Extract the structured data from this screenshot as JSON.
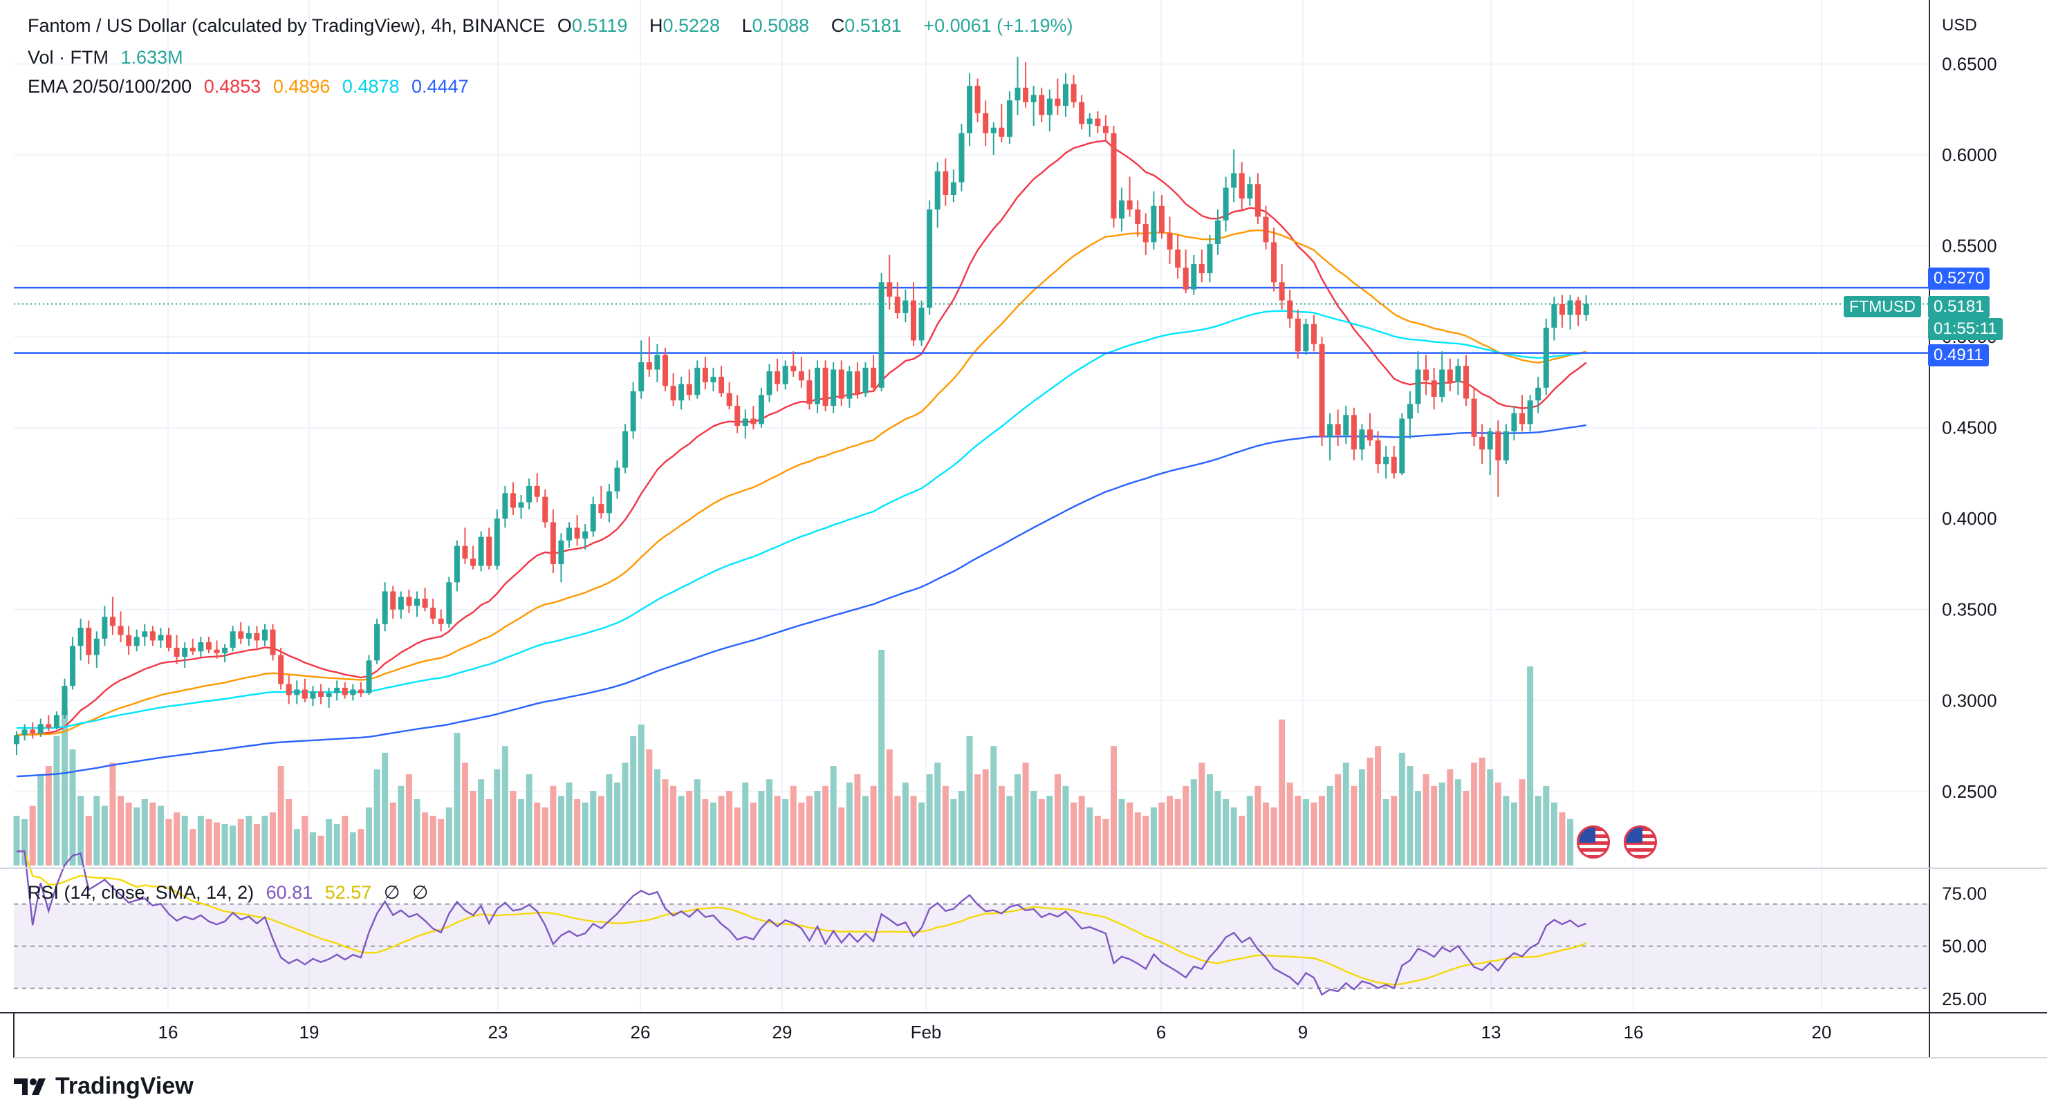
{
  "header": {
    "symbol_title": "Fantom / US Dollar (calculated by TradingView), 4h, BINANCE",
    "open_label": "O",
    "open_value": "0.5119",
    "high_label": "H",
    "high_value": "0.5228",
    "low_label": "L",
    "low_value": "0.5088",
    "close_label": "C",
    "close_value": "0.5181",
    "change_value": "+0.0061 (+1.19%)",
    "vol_label": "Vol · FTM",
    "vol_value": "1.633M",
    "ema_label": "EMA 20/50/100/200",
    "ema20_value": "0.4853",
    "ema50_value": "0.4896",
    "ema100_value": "0.4878",
    "ema200_value": "0.4447"
  },
  "rsi_header": {
    "label": "RSI (14, close, SMA, 14, 2)",
    "rsi_value": "60.81",
    "sma_value": "52.57",
    "extra1": "∅",
    "extra2": "∅"
  },
  "price_axis": {
    "currency": "USD",
    "ticks": [
      "0.6500",
      "0.6000",
      "0.5500",
      "0.5000",
      "0.4500",
      "0.4000",
      "0.3500",
      "0.3000",
      "0.2500"
    ]
  },
  "price_labels": {
    "resistance": "0.5270",
    "current_symbol": "FTMUSD",
    "current_price": "0.5181",
    "countdown": "01:55:11",
    "support": "0.4911"
  },
  "rsi_axis": {
    "ticks": [
      "75.00",
      "50.00",
      "25.00"
    ]
  },
  "time_axis": {
    "ticks": [
      "16",
      "19",
      "23",
      "26",
      "29",
      "Feb",
      "6",
      "9",
      "13",
      "16",
      "20"
    ]
  },
  "brand": {
    "name": "TradingView"
  },
  "colors": {
    "up": "#26a69a",
    "down": "#ef5350",
    "ema20": "#f23645",
    "ema50": "#ff9800",
    "ema100": "#00e5ff",
    "ema200": "#2962ff",
    "hline": "#2962ff",
    "rsi": "#7e57c2",
    "rsi_sma": "#f5d90a"
  },
  "chart_data": {
    "type": "candlestick",
    "title": "Fantom / US Dollar (calculated by TradingView), 4h, BINANCE",
    "ylabel": "USD",
    "ylim": [
      0.21,
      0.67
    ],
    "horizontal_lines": [
      0.527,
      0.4911
    ],
    "x_start_date": "2023-01-13",
    "candles": [
      [
        0.276,
        0.283,
        0.27,
        0.281
      ],
      [
        0.281,
        0.287,
        0.278,
        0.284
      ],
      [
        0.284,
        0.288,
        0.279,
        0.282
      ],
      [
        0.282,
        0.29,
        0.28,
        0.287
      ],
      [
        0.287,
        0.292,
        0.283,
        0.285
      ],
      [
        0.285,
        0.294,
        0.284,
        0.292
      ],
      [
        0.292,
        0.312,
        0.29,
        0.308
      ],
      [
        0.308,
        0.335,
        0.306,
        0.33
      ],
      [
        0.33,
        0.345,
        0.322,
        0.34
      ],
      [
        0.34,
        0.344,
        0.32,
        0.325
      ],
      [
        0.325,
        0.338,
        0.318,
        0.334
      ],
      [
        0.334,
        0.352,
        0.33,
        0.346
      ],
      [
        0.346,
        0.357,
        0.336,
        0.341
      ],
      [
        0.341,
        0.349,
        0.332,
        0.336
      ],
      [
        0.336,
        0.341,
        0.325,
        0.33
      ],
      [
        0.33,
        0.339,
        0.327,
        0.335
      ],
      [
        0.335,
        0.342,
        0.33,
        0.338
      ],
      [
        0.338,
        0.341,
        0.33,
        0.333
      ],
      [
        0.333,
        0.34,
        0.329,
        0.336
      ],
      [
        0.336,
        0.34,
        0.327,
        0.329
      ],
      [
        0.329,
        0.336,
        0.32,
        0.324
      ],
      [
        0.324,
        0.332,
        0.318,
        0.329
      ],
      [
        0.329,
        0.334,
        0.325,
        0.327
      ],
      [
        0.327,
        0.335,
        0.324,
        0.332
      ],
      [
        0.332,
        0.335,
        0.326,
        0.328
      ],
      [
        0.328,
        0.333,
        0.323,
        0.326
      ],
      [
        0.326,
        0.331,
        0.321,
        0.329
      ],
      [
        0.329,
        0.341,
        0.327,
        0.338
      ],
      [
        0.338,
        0.343,
        0.331,
        0.334
      ],
      [
        0.334,
        0.341,
        0.33,
        0.337
      ],
      [
        0.337,
        0.341,
        0.329,
        0.333
      ],
      [
        0.333,
        0.342,
        0.33,
        0.339
      ],
      [
        0.339,
        0.342,
        0.322,
        0.325
      ],
      [
        0.325,
        0.329,
        0.306,
        0.309
      ],
      [
        0.309,
        0.314,
        0.298,
        0.303
      ],
      [
        0.303,
        0.311,
        0.298,
        0.306
      ],
      [
        0.306,
        0.312,
        0.299,
        0.301
      ],
      [
        0.301,
        0.308,
        0.297,
        0.305
      ],
      [
        0.305,
        0.309,
        0.298,
        0.302
      ],
      [
        0.302,
        0.307,
        0.296,
        0.304
      ],
      [
        0.304,
        0.311,
        0.3,
        0.307
      ],
      [
        0.307,
        0.31,
        0.301,
        0.303
      ],
      [
        0.303,
        0.309,
        0.3,
        0.306
      ],
      [
        0.306,
        0.31,
        0.302,
        0.304
      ],
      [
        0.304,
        0.325,
        0.303,
        0.322
      ],
      [
        0.322,
        0.345,
        0.32,
        0.342
      ],
      [
        0.342,
        0.365,
        0.338,
        0.36
      ],
      [
        0.36,
        0.363,
        0.345,
        0.35
      ],
      [
        0.35,
        0.36,
        0.345,
        0.357
      ],
      [
        0.357,
        0.361,
        0.348,
        0.352
      ],
      [
        0.352,
        0.36,
        0.346,
        0.356
      ],
      [
        0.356,
        0.362,
        0.349,
        0.351
      ],
      [
        0.351,
        0.356,
        0.342,
        0.345
      ],
      [
        0.345,
        0.35,
        0.338,
        0.342
      ],
      [
        0.342,
        0.368,
        0.34,
        0.365
      ],
      [
        0.365,
        0.388,
        0.36,
        0.385
      ],
      [
        0.385,
        0.395,
        0.375,
        0.378
      ],
      [
        0.378,
        0.385,
        0.372,
        0.374
      ],
      [
        0.374,
        0.393,
        0.371,
        0.39
      ],
      [
        0.39,
        0.395,
        0.372,
        0.374
      ],
      [
        0.374,
        0.405,
        0.372,
        0.4
      ],
      [
        0.4,
        0.418,
        0.395,
        0.414
      ],
      [
        0.414,
        0.42,
        0.402,
        0.406
      ],
      [
        0.406,
        0.413,
        0.4,
        0.409
      ],
      [
        0.409,
        0.422,
        0.405,
        0.418
      ],
      [
        0.418,
        0.425,
        0.409,
        0.412
      ],
      [
        0.412,
        0.416,
        0.395,
        0.398
      ],
      [
        0.398,
        0.405,
        0.37,
        0.375
      ],
      [
        0.375,
        0.392,
        0.365,
        0.388
      ],
      [
        0.388,
        0.398,
        0.384,
        0.395
      ],
      [
        0.395,
        0.402,
        0.385,
        0.389
      ],
      [
        0.389,
        0.397,
        0.383,
        0.393
      ],
      [
        0.393,
        0.412,
        0.39,
        0.408
      ],
      [
        0.408,
        0.418,
        0.4,
        0.403
      ],
      [
        0.403,
        0.419,
        0.398,
        0.415
      ],
      [
        0.415,
        0.432,
        0.411,
        0.428
      ],
      [
        0.428,
        0.452,
        0.425,
        0.448
      ],
      [
        0.448,
        0.475,
        0.444,
        0.47
      ],
      [
        0.47,
        0.498,
        0.466,
        0.486
      ],
      [
        0.486,
        0.5,
        0.478,
        0.482
      ],
      [
        0.482,
        0.496,
        0.475,
        0.49
      ],
      [
        0.49,
        0.494,
        0.47,
        0.473
      ],
      [
        0.473,
        0.48,
        0.462,
        0.465
      ],
      [
        0.465,
        0.478,
        0.46,
        0.474
      ],
      [
        0.474,
        0.482,
        0.465,
        0.468
      ],
      [
        0.468,
        0.487,
        0.466,
        0.483
      ],
      [
        0.483,
        0.489,
        0.471,
        0.475
      ],
      [
        0.475,
        0.483,
        0.47,
        0.478
      ],
      [
        0.478,
        0.484,
        0.467,
        0.469
      ],
      [
        0.469,
        0.475,
        0.46,
        0.462
      ],
      [
        0.462,
        0.468,
        0.447,
        0.451
      ],
      [
        0.451,
        0.46,
        0.444,
        0.455
      ],
      [
        0.455,
        0.462,
        0.449,
        0.452
      ],
      [
        0.452,
        0.472,
        0.45,
        0.468
      ],
      [
        0.468,
        0.485,
        0.464,
        0.481
      ],
      [
        0.481,
        0.488,
        0.47,
        0.474
      ],
      [
        0.474,
        0.487,
        0.471,
        0.484
      ],
      [
        0.484,
        0.492,
        0.478,
        0.481
      ],
      [
        0.481,
        0.489,
        0.472,
        0.476
      ],
      [
        0.476,
        0.482,
        0.46,
        0.463
      ],
      [
        0.463,
        0.487,
        0.458,
        0.483
      ],
      [
        0.483,
        0.487,
        0.459,
        0.462
      ],
      [
        0.462,
        0.486,
        0.458,
        0.482
      ],
      [
        0.482,
        0.487,
        0.462,
        0.466
      ],
      [
        0.466,
        0.484,
        0.461,
        0.481
      ],
      [
        0.481,
        0.486,
        0.466,
        0.469
      ],
      [
        0.469,
        0.486,
        0.467,
        0.483
      ],
      [
        0.483,
        0.49,
        0.47,
        0.472
      ],
      [
        0.472,
        0.535,
        0.47,
        0.53
      ],
      [
        0.53,
        0.545,
        0.515,
        0.522
      ],
      [
        0.522,
        0.53,
        0.51,
        0.513
      ],
      [
        0.513,
        0.526,
        0.508,
        0.52
      ],
      [
        0.52,
        0.53,
        0.495,
        0.498
      ],
      [
        0.498,
        0.52,
        0.495,
        0.516
      ],
      [
        0.516,
        0.575,
        0.512,
        0.57
      ],
      [
        0.57,
        0.596,
        0.56,
        0.591
      ],
      [
        0.591,
        0.598,
        0.572,
        0.578
      ],
      [
        0.578,
        0.592,
        0.574,
        0.585
      ],
      [
        0.585,
        0.617,
        0.58,
        0.612
      ],
      [
        0.612,
        0.645,
        0.605,
        0.638
      ],
      [
        0.638,
        0.642,
        0.618,
        0.623
      ],
      [
        0.623,
        0.63,
        0.605,
        0.612
      ],
      [
        0.612,
        0.618,
        0.6,
        0.615
      ],
      [
        0.615,
        0.628,
        0.607,
        0.61
      ],
      [
        0.61,
        0.635,
        0.606,
        0.63
      ],
      [
        0.63,
        0.654,
        0.622,
        0.637
      ],
      [
        0.637,
        0.651,
        0.626,
        0.629
      ],
      [
        0.629,
        0.638,
        0.616,
        0.633
      ],
      [
        0.633,
        0.637,
        0.618,
        0.622
      ],
      [
        0.622,
        0.636,
        0.613,
        0.631
      ],
      [
        0.631,
        0.642,
        0.622,
        0.627
      ],
      [
        0.627,
        0.645,
        0.621,
        0.639
      ],
      [
        0.639,
        0.644,
        0.626,
        0.629
      ],
      [
        0.629,
        0.633,
        0.614,
        0.617
      ],
      [
        0.617,
        0.623,
        0.61,
        0.62
      ],
      [
        0.62,
        0.624,
        0.612,
        0.616
      ],
      [
        0.616,
        0.622,
        0.608,
        0.612
      ],
      [
        0.612,
        0.616,
        0.56,
        0.565
      ],
      [
        0.565,
        0.582,
        0.558,
        0.575
      ],
      [
        0.575,
        0.588,
        0.566,
        0.57
      ],
      [
        0.57,
        0.575,
        0.555,
        0.562
      ],
      [
        0.562,
        0.568,
        0.545,
        0.552
      ],
      [
        0.552,
        0.58,
        0.548,
        0.572
      ],
      [
        0.572,
        0.578,
        0.554,
        0.557
      ],
      [
        0.557,
        0.566,
        0.54,
        0.548
      ],
      [
        0.548,
        0.556,
        0.532,
        0.538
      ],
      [
        0.538,
        0.548,
        0.524,
        0.526
      ],
      [
        0.526,
        0.545,
        0.523,
        0.54
      ],
      [
        0.54,
        0.548,
        0.53,
        0.535
      ],
      [
        0.535,
        0.556,
        0.53,
        0.551
      ],
      [
        0.551,
        0.57,
        0.545,
        0.564
      ],
      [
        0.564,
        0.588,
        0.558,
        0.582
      ],
      [
        0.582,
        0.603,
        0.574,
        0.59
      ],
      [
        0.59,
        0.596,
        0.57,
        0.576
      ],
      [
        0.576,
        0.588,
        0.572,
        0.584
      ],
      [
        0.584,
        0.59,
        0.562,
        0.566
      ],
      [
        0.566,
        0.572,
        0.548,
        0.552
      ],
      [
        0.552,
        0.56,
        0.525,
        0.53
      ],
      [
        0.53,
        0.54,
        0.515,
        0.52
      ],
      [
        0.52,
        0.526,
        0.505,
        0.51
      ],
      [
        0.51,
        0.515,
        0.488,
        0.492
      ],
      [
        0.492,
        0.51,
        0.49,
        0.507
      ],
      [
        0.507,
        0.512,
        0.492,
        0.496
      ],
      [
        0.496,
        0.5,
        0.44,
        0.445
      ],
      [
        0.445,
        0.458,
        0.432,
        0.452
      ],
      [
        0.452,
        0.46,
        0.44,
        0.446
      ],
      [
        0.446,
        0.462,
        0.441,
        0.457
      ],
      [
        0.457,
        0.461,
        0.432,
        0.438
      ],
      [
        0.438,
        0.452,
        0.432,
        0.449
      ],
      [
        0.449,
        0.458,
        0.44,
        0.443
      ],
      [
        0.443,
        0.448,
        0.425,
        0.43
      ],
      [
        0.43,
        0.44,
        0.422,
        0.434
      ],
      [
        0.434,
        0.44,
        0.422,
        0.425
      ],
      [
        0.425,
        0.458,
        0.424,
        0.455
      ],
      [
        0.455,
        0.47,
        0.444,
        0.463
      ],
      [
        0.463,
        0.492,
        0.458,
        0.482
      ],
      [
        0.482,
        0.49,
        0.468,
        0.476
      ],
      [
        0.476,
        0.483,
        0.46,
        0.467
      ],
      [
        0.467,
        0.492,
        0.464,
        0.482
      ],
      [
        0.482,
        0.488,
        0.47,
        0.475
      ],
      [
        0.475,
        0.488,
        0.468,
        0.484
      ],
      [
        0.484,
        0.49,
        0.462,
        0.466
      ],
      [
        0.466,
        0.472,
        0.44,
        0.445
      ],
      [
        0.445,
        0.452,
        0.43,
        0.438
      ],
      [
        0.438,
        0.45,
        0.424,
        0.448
      ],
      [
        0.448,
        0.454,
        0.412,
        0.432
      ],
      [
        0.432,
        0.452,
        0.43,
        0.448
      ],
      [
        0.448,
        0.462,
        0.443,
        0.458
      ],
      [
        0.458,
        0.468,
        0.448,
        0.452
      ],
      [
        0.452,
        0.468,
        0.448,
        0.465
      ],
      [
        0.465,
        0.478,
        0.458,
        0.472
      ],
      [
        0.472,
        0.51,
        0.468,
        0.505
      ],
      [
        0.505,
        0.522,
        0.498,
        0.518
      ],
      [
        0.518,
        0.523,
        0.505,
        0.512
      ],
      [
        0.512,
        0.523,
        0.504,
        0.52
      ],
      [
        0.52,
        0.522,
        0.506,
        0.512
      ],
      [
        0.5119,
        0.5228,
        0.5088,
        0.5181
      ]
    ],
    "volume": [
      0.3,
      0.28,
      0.36,
      0.55,
      0.6,
      0.78,
      0.95,
      0.7,
      0.42,
      0.3,
      0.42,
      0.36,
      0.62,
      0.42,
      0.38,
      0.35,
      0.4,
      0.38,
      0.36,
      0.28,
      0.32,
      0.3,
      0.22,
      0.3,
      0.28,
      0.26,
      0.25,
      0.24,
      0.28,
      0.3,
      0.25,
      0.3,
      0.32,
      0.6,
      0.4,
      0.22,
      0.3,
      0.2,
      0.18,
      0.28,
      0.25,
      0.3,
      0.2,
      0.22,
      0.35,
      0.58,
      0.68,
      0.38,
      0.48,
      0.55,
      0.4,
      0.32,
      0.3,
      0.28,
      0.35,
      0.8,
      0.62,
      0.45,
      0.52,
      0.4,
      0.58,
      0.72,
      0.45,
      0.4,
      0.55,
      0.38,
      0.35,
      0.48,
      0.42,
      0.5,
      0.4,
      0.38,
      0.45,
      0.42,
      0.55,
      0.5,
      0.62,
      0.78,
      0.85,
      0.7,
      0.58,
      0.52,
      0.48,
      0.42,
      0.45,
      0.52,
      0.4,
      0.38,
      0.42,
      0.45,
      0.35,
      0.5,
      0.38,
      0.45,
      0.52,
      0.42,
      0.4,
      0.48,
      0.38,
      0.42,
      0.45,
      0.48,
      0.6,
      0.35,
      0.5,
      0.55,
      0.42,
      0.48,
      1.3,
      0.7,
      0.42,
      0.5,
      0.42,
      0.38,
      0.55,
      0.62,
      0.48,
      0.4,
      0.45,
      0.78,
      0.55,
      0.58,
      0.72,
      0.48,
      0.42,
      0.55,
      0.62,
      0.45,
      0.4,
      0.42,
      0.55,
      0.48,
      0.38,
      0.42,
      0.35,
      0.3,
      0.28,
      0.72,
      0.4,
      0.38,
      0.32,
      0.3,
      0.35,
      0.38,
      0.42,
      0.4,
      0.48,
      0.52,
      0.62,
      0.55,
      0.45,
      0.4,
      0.35,
      0.3,
      0.42,
      0.48,
      0.38,
      0.35,
      0.88,
      0.5,
      0.42,
      0.4,
      0.38,
      0.42,
      0.48,
      0.55,
      0.62,
      0.48,
      0.58,
      0.65,
      0.72,
      0.4,
      0.42,
      0.68,
      0.6,
      0.45,
      0.55,
      0.48,
      0.5,
      0.58,
      0.52,
      0.45,
      0.62,
      0.65,
      0.58,
      0.5,
      0.42,
      0.38,
      0.52,
      1.2,
      0.42,
      0.48,
      0.38,
      0.32,
      0.28
    ],
    "ema_series": [
      {
        "name": "EMA 20",
        "period": 20,
        "color": "#f23645"
      },
      {
        "name": "EMA 50",
        "period": 50,
        "color": "#ff9800"
      },
      {
        "name": "EMA 100",
        "period": 100,
        "color": "#00e5ff",
        "seed": 0.285
      },
      {
        "name": "EMA 200",
        "period": 200,
        "color": "#2962ff",
        "seed": 0.258
      }
    ],
    "rsi": {
      "period": 14,
      "ylim": [
        20,
        85
      ],
      "bands": [
        70,
        50,
        30
      ]
    }
  }
}
